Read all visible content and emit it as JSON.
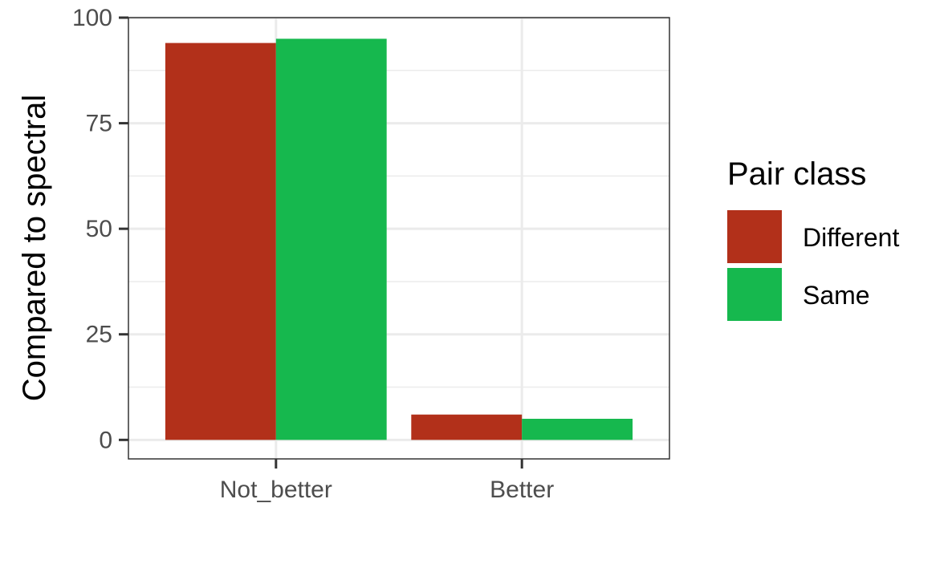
{
  "chart_data": {
    "type": "bar",
    "categories": [
      "Not_better",
      "Better"
    ],
    "series": [
      {
        "name": "Different",
        "values": [
          94,
          6
        ],
        "color": "#B2301A"
      },
      {
        "name": "Same",
        "values": [
          95,
          5
        ],
        "color": "#16B84E"
      }
    ],
    "title": "",
    "xlabel": "",
    "ylabel": "Compared to spectral",
    "ylim": [
      -4.5,
      100
    ],
    "yticks": [
      "0",
      "25",
      "50",
      "75",
      "100"
    ],
    "grid": true,
    "legend": {
      "title": "Pair class",
      "placement": "right"
    }
  }
}
